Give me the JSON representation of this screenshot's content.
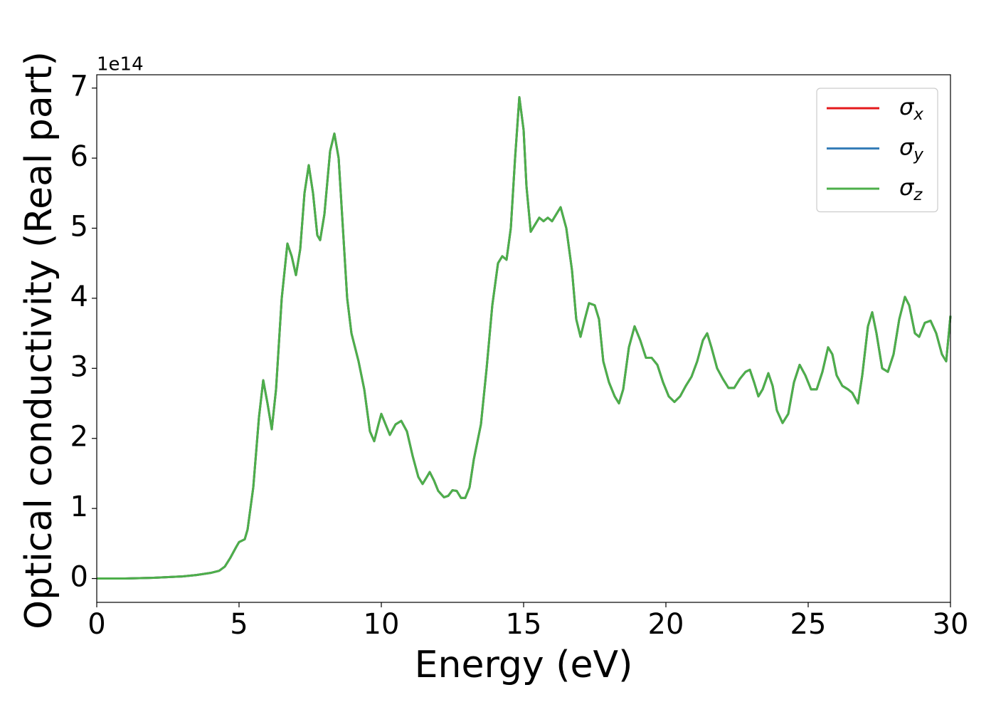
{
  "chart_data": {
    "type": "line",
    "xlabel": "Energy (eV)",
    "ylabel": "Optical conductivity (Real part)",
    "y_offset_label": "1e14",
    "x": [
      0,
      1,
      2,
      3,
      3.5,
      4,
      4.3,
      4.5,
      4.7,
      4.9,
      5.0,
      5.2,
      5.3,
      5.5,
      5.7,
      5.85,
      6.0,
      6.15,
      6.3,
      6.5,
      6.7,
      6.85,
      7.0,
      7.15,
      7.3,
      7.45,
      7.6,
      7.75,
      7.85,
      8.0,
      8.2,
      8.35,
      8.5,
      8.65,
      8.8,
      8.95,
      9.2,
      9.4,
      9.6,
      9.75,
      9.9,
      10.0,
      10.15,
      10.3,
      10.5,
      10.7,
      10.9,
      11.1,
      11.3,
      11.45,
      11.6,
      11.7,
      11.85,
      12.0,
      12.2,
      12.35,
      12.5,
      12.65,
      12.8,
      12.95,
      13.1,
      13.25,
      13.5,
      13.7,
      13.9,
      14.1,
      14.25,
      14.4,
      14.55,
      14.7,
      14.85,
      15.0,
      15.1,
      15.25,
      15.4,
      15.55,
      15.7,
      15.85,
      16.0,
      16.15,
      16.3,
      16.5,
      16.7,
      16.85,
      17.0,
      17.15,
      17.3,
      17.5,
      17.65,
      17.8,
      18.0,
      18.2,
      18.35,
      18.5,
      18.7,
      18.9,
      19.1,
      19.3,
      19.5,
      19.7,
      19.9,
      20.1,
      20.3,
      20.5,
      20.7,
      20.9,
      21.1,
      21.3,
      21.45,
      21.6,
      21.8,
      22.0,
      22.2,
      22.4,
      22.6,
      22.8,
      22.95,
      23.1,
      23.25,
      23.4,
      23.6,
      23.75,
      23.9,
      24.1,
      24.3,
      24.5,
      24.7,
      24.9,
      25.1,
      25.3,
      25.5,
      25.7,
      25.85,
      26.0,
      26.2,
      26.4,
      26.55,
      26.75,
      26.9,
      27.1,
      27.25,
      27.4,
      27.6,
      27.8,
      28.0,
      28.2,
      28.4,
      28.55,
      28.75,
      28.9,
      29.1,
      29.3,
      29.5,
      29.7,
      29.85,
      30.0
    ],
    "series": [
      {
        "name": "σx",
        "color": "#e41a1c",
        "values": [
          0,
          0,
          0.01,
          0.03,
          0.05,
          0.08,
          0.11,
          0.17,
          0.3,
          0.45,
          0.52,
          0.56,
          0.7,
          1.3,
          2.3,
          2.83,
          2.5,
          2.13,
          2.7,
          4.0,
          4.78,
          4.6,
          4.33,
          4.7,
          5.5,
          5.9,
          5.5,
          4.9,
          4.83,
          5.2,
          6.1,
          6.35,
          6.0,
          5.0,
          4.0,
          3.5,
          3.1,
          2.7,
          2.1,
          1.96,
          2.2,
          2.35,
          2.2,
          2.05,
          2.2,
          2.25,
          2.1,
          1.75,
          1.45,
          1.35,
          1.45,
          1.52,
          1.4,
          1.25,
          1.16,
          1.18,
          1.26,
          1.25,
          1.15,
          1.15,
          1.3,
          1.7,
          2.2,
          3.0,
          3.9,
          4.5,
          4.6,
          4.55,
          5.0,
          6.0,
          6.87,
          6.4,
          5.6,
          4.95,
          5.05,
          5.15,
          5.1,
          5.15,
          5.1,
          5.2,
          5.3,
          5.0,
          4.4,
          3.7,
          3.45,
          3.7,
          3.93,
          3.9,
          3.7,
          3.1,
          2.8,
          2.6,
          2.5,
          2.7,
          3.3,
          3.6,
          3.4,
          3.15,
          3.15,
          3.05,
          2.8,
          2.6,
          2.52,
          2.6,
          2.75,
          2.88,
          3.1,
          3.4,
          3.5,
          3.3,
          3.0,
          2.85,
          2.72,
          2.72,
          2.85,
          2.95,
          2.98,
          2.8,
          2.6,
          2.7,
          2.93,
          2.75,
          2.4,
          2.22,
          2.35,
          2.8,
          3.05,
          2.9,
          2.7,
          2.7,
          2.95,
          3.3,
          3.2,
          2.9,
          2.75,
          2.7,
          2.65,
          2.5,
          2.9,
          3.6,
          3.8,
          3.5,
          3.0,
          2.95,
          3.2,
          3.7,
          4.02,
          3.9,
          3.5,
          3.45,
          3.65,
          3.68,
          3.5,
          3.2,
          3.1,
          3.75
        ]
      },
      {
        "name": "σy",
        "color": "#377eb8",
        "values": [
          0,
          0,
          0.01,
          0.03,
          0.05,
          0.08,
          0.11,
          0.17,
          0.3,
          0.45,
          0.52,
          0.56,
          0.7,
          1.3,
          2.3,
          2.83,
          2.5,
          2.13,
          2.7,
          4.0,
          4.78,
          4.6,
          4.33,
          4.7,
          5.5,
          5.9,
          5.5,
          4.9,
          4.83,
          5.2,
          6.1,
          6.35,
          6.0,
          5.0,
          4.0,
          3.5,
          3.1,
          2.7,
          2.1,
          1.96,
          2.2,
          2.35,
          2.2,
          2.05,
          2.2,
          2.25,
          2.1,
          1.75,
          1.45,
          1.35,
          1.45,
          1.52,
          1.4,
          1.25,
          1.16,
          1.18,
          1.26,
          1.25,
          1.15,
          1.15,
          1.3,
          1.7,
          2.2,
          3.0,
          3.9,
          4.5,
          4.6,
          4.55,
          5.0,
          6.0,
          6.87,
          6.4,
          5.6,
          4.95,
          5.05,
          5.15,
          5.1,
          5.15,
          5.1,
          5.2,
          5.3,
          5.0,
          4.4,
          3.7,
          3.45,
          3.7,
          3.93,
          3.9,
          3.7,
          3.1,
          2.8,
          2.6,
          2.5,
          2.7,
          3.3,
          3.6,
          3.4,
          3.15,
          3.15,
          3.05,
          2.8,
          2.6,
          2.52,
          2.6,
          2.75,
          2.88,
          3.1,
          3.4,
          3.5,
          3.3,
          3.0,
          2.85,
          2.72,
          2.72,
          2.85,
          2.95,
          2.98,
          2.8,
          2.6,
          2.7,
          2.93,
          2.75,
          2.4,
          2.22,
          2.35,
          2.8,
          3.05,
          2.9,
          2.7,
          2.7,
          2.95,
          3.3,
          3.2,
          2.9,
          2.75,
          2.7,
          2.65,
          2.5,
          2.9,
          3.6,
          3.8,
          3.5,
          3.0,
          2.95,
          3.2,
          3.7,
          4.02,
          3.9,
          3.5,
          3.45,
          3.65,
          3.68,
          3.5,
          3.2,
          3.1,
          3.75
        ]
      },
      {
        "name": "σz",
        "color": "#4daf4a",
        "values": [
          0,
          0,
          0.01,
          0.03,
          0.05,
          0.08,
          0.11,
          0.17,
          0.3,
          0.45,
          0.52,
          0.56,
          0.7,
          1.3,
          2.3,
          2.83,
          2.5,
          2.13,
          2.7,
          4.0,
          4.78,
          4.6,
          4.33,
          4.7,
          5.5,
          5.9,
          5.5,
          4.9,
          4.83,
          5.2,
          6.1,
          6.35,
          6.0,
          5.0,
          4.0,
          3.5,
          3.1,
          2.7,
          2.1,
          1.96,
          2.2,
          2.35,
          2.2,
          2.05,
          2.2,
          2.25,
          2.1,
          1.75,
          1.45,
          1.35,
          1.45,
          1.52,
          1.4,
          1.25,
          1.16,
          1.18,
          1.26,
          1.25,
          1.15,
          1.15,
          1.3,
          1.7,
          2.2,
          3.0,
          3.9,
          4.5,
          4.6,
          4.55,
          5.0,
          6.0,
          6.87,
          6.4,
          5.6,
          4.95,
          5.05,
          5.15,
          5.1,
          5.15,
          5.1,
          5.2,
          5.3,
          5.0,
          4.4,
          3.7,
          3.45,
          3.7,
          3.93,
          3.9,
          3.7,
          3.1,
          2.8,
          2.6,
          2.5,
          2.7,
          3.3,
          3.6,
          3.4,
          3.15,
          3.15,
          3.05,
          2.8,
          2.6,
          2.52,
          2.6,
          2.75,
          2.88,
          3.1,
          3.4,
          3.5,
          3.3,
          3.0,
          2.85,
          2.72,
          2.72,
          2.85,
          2.95,
          2.98,
          2.8,
          2.6,
          2.7,
          2.93,
          2.75,
          2.4,
          2.22,
          2.35,
          2.8,
          3.05,
          2.9,
          2.7,
          2.7,
          2.95,
          3.3,
          3.2,
          2.9,
          2.75,
          2.7,
          2.65,
          2.5,
          2.9,
          3.6,
          3.8,
          3.5,
          3.0,
          2.95,
          3.2,
          3.7,
          4.02,
          3.9,
          3.5,
          3.45,
          3.65,
          3.68,
          3.5,
          3.2,
          3.1,
          3.75
        ]
      }
    ],
    "xlim": [
      0,
      30
    ],
    "xticks": [
      0,
      5,
      10,
      15,
      20,
      25,
      30
    ],
    "ylim": [
      -0.34,
      7.19
    ],
    "yticks": [
      0,
      1,
      2,
      3,
      4,
      5,
      6,
      7
    ],
    "grid": false,
    "legend": "upper right"
  }
}
